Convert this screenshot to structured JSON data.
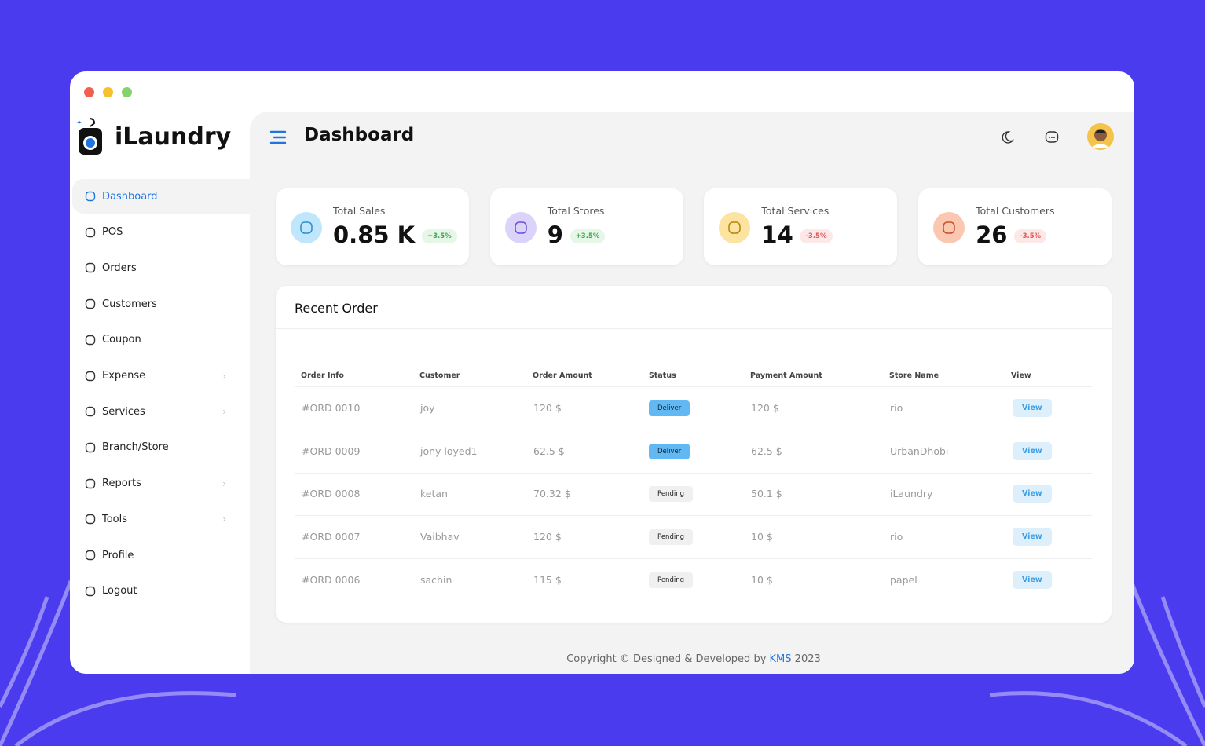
{
  "app": {
    "name": "iLaundry"
  },
  "sidebar": {
    "items": [
      {
        "label": "Dashboard",
        "active": true
      },
      {
        "label": "POS"
      },
      {
        "label": "Orders"
      },
      {
        "label": "Customers"
      },
      {
        "label": "Coupon"
      },
      {
        "label": "Expense",
        "submenu": true
      },
      {
        "label": "Services",
        "submenu": true
      },
      {
        "label": "Branch/Store"
      },
      {
        "label": "Reports",
        "submenu": true
      },
      {
        "label": "Tools",
        "submenu": true
      },
      {
        "label": "Profile"
      },
      {
        "label": "Logout"
      }
    ]
  },
  "header": {
    "title": "Dashboard"
  },
  "stats": [
    {
      "label": "Total Sales",
      "value": "0.85 K",
      "change": "+3.5%"
    },
    {
      "label": "Total Stores",
      "value": "9",
      "change": "+3.5%"
    },
    {
      "label": "Total Services",
      "value": "14",
      "change": "-3.5%"
    },
    {
      "label": "Total Customers",
      "value": "26",
      "change": "-3.5%"
    }
  ],
  "recent_order": {
    "title": "Recent Order",
    "columns": [
      "Order Info",
      "Customer",
      "Order Amount",
      "Status",
      "Payment Amount",
      "Store Name",
      "View"
    ],
    "rows": [
      [
        "#ORD 0010",
        "joy",
        "120 $",
        "Deliver",
        "120 $",
        "rio",
        "View"
      ],
      [
        "#ORD 0009",
        "jony loyed1",
        "62.5 $",
        "Deliver",
        "62.5 $",
        "UrbanDhobi",
        "View"
      ],
      [
        "#ORD 0008",
        "ketan",
        "70.32 $",
        "Pending",
        "50.1 $",
        "iLaundry",
        "View"
      ],
      [
        "#ORD 0007",
        "Vaibhav",
        "120 $",
        "Pending",
        "10 $",
        "rio",
        "View"
      ],
      [
        "#ORD 0006",
        "sachin",
        "115 $",
        "Pending",
        "10 $",
        "papel",
        "View"
      ]
    ]
  },
  "footer": {
    "text": "Copyright © Designed & Developed by",
    "brand": "KMS",
    "year": "2023"
  }
}
